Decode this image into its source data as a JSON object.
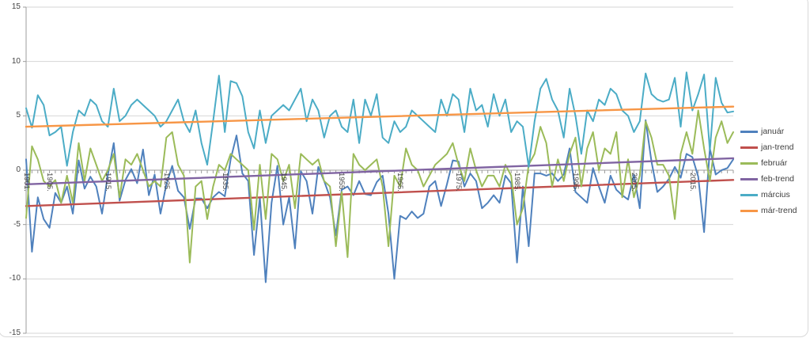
{
  "chart_data": {
    "type": "line",
    "title": "",
    "xlabel": "",
    "ylabel": "",
    "x_start_year": 1901,
    "x_end_year": 2022,
    "x_tick_labels": [
      "1901.",
      "1905.",
      "1915.",
      "1925.",
      "1935.",
      "1945.",
      "1955.",
      "1965.",
      "1975.",
      "1985.",
      "1995.",
      "2005.",
      "2015."
    ],
    "y_ticks": [
      15,
      10,
      5,
      0,
      -5,
      -10,
      -15
    ],
    "ylim": [
      -15,
      15
    ],
    "grid": true,
    "legend_position": "right",
    "colors": {
      "gridline": "#d6d6d6",
      "axis": "#9c9c9c",
      "label_text": "#444444",
      "frame_border": "#d9d9d9"
    },
    "series": [
      {
        "name": "január",
        "color": "#4F81BD",
        "kind": "data",
        "values": [
          1.0,
          -7.5,
          -2.5,
          -4.5,
          -5.3,
          -2.1,
          -3.0,
          -1.5,
          -4.0,
          0.9,
          -1.7,
          -0.6,
          -1.5,
          -4.0,
          -0.4,
          2.5,
          -2.8,
          -0.9,
          0.1,
          -1.2,
          1.9,
          -2.3,
          -0.4,
          -4.0,
          -1.3,
          0.4,
          -1.9,
          -2.5,
          -5.4,
          -2.6,
          -2.6,
          -3.5,
          -2.5,
          -2.0,
          -2.4,
          1.0,
          3.2,
          -0.3,
          -1.0,
          -7.8,
          -2.5,
          -10.3,
          -3.0,
          0.4,
          -5.0,
          -2.5,
          -7.2,
          -0.1,
          -1.0,
          -4.0,
          0.3,
          -1.0,
          -2.5,
          -6.0,
          -1.8,
          -1.5,
          -2.3,
          -1.0,
          -2.2,
          -2.3,
          -1.1,
          -0.5,
          -4.0,
          -10.0,
          -4.2,
          -4.5,
          -3.8,
          -4.4,
          -4.0,
          -1.5,
          -1.0,
          -3.3,
          -1.3,
          0.9,
          0.8,
          -1.5,
          -0.3,
          -1.0,
          -3.5,
          -3.0,
          -2.3,
          -3.0,
          -0.5,
          -1.2,
          -8.5,
          -1.5,
          -7.0,
          -0.3,
          -0.3,
          -0.5,
          -0.3,
          -1.0,
          -0.4,
          2.0,
          -2.0,
          -2.5,
          -3.0,
          0.2,
          -1.5,
          -3.0,
          -0.5,
          -1.8,
          -2.3,
          -2.7,
          -0.4,
          -3.5,
          4.6,
          0.8,
          -2.0,
          -1.5,
          -0.8,
          0.3,
          -0.7,
          1.5,
          1.2,
          -0.6,
          -5.7,
          2.0,
          -0.4,
          0.0,
          0.2,
          1.0
        ]
      },
      {
        "name": "jan-trend",
        "color": "#C0504D",
        "kind": "trend",
        "trend_start": -3.3,
        "trend_end": -0.9
      },
      {
        "name": "február",
        "color": "#9BBB59",
        "kind": "data",
        "values": [
          -4.4,
          2.2,
          1.0,
          -1.0,
          -1.5,
          -0.9,
          -3.0,
          -0.5,
          -3.0,
          2.5,
          -1.0,
          2.0,
          0.5,
          -1.0,
          0.0,
          1.5,
          -2.5,
          1.0,
          0.5,
          1.5,
          0.0,
          -1.5,
          -1.0,
          -1.5,
          3.0,
          3.5,
          0.5,
          -0.5,
          -8.5,
          -1.5,
          -1.0,
          -4.5,
          -1.5,
          0.5,
          0.0,
          1.5,
          1.0,
          0.5,
          0.0,
          -5.5,
          0.5,
          -4.5,
          1.5,
          1.0,
          -1.0,
          0.5,
          -3.5,
          1.5,
          1.0,
          0.5,
          1.0,
          -1.0,
          -1.5,
          -7.0,
          -2.0,
          -8.0,
          1.5,
          0.5,
          0.0,
          0.5,
          1.0,
          -1.5,
          -7.0,
          -0.5,
          -1.5,
          2.0,
          0.5,
          0.0,
          -1.5,
          -0.5,
          0.5,
          1.0,
          1.5,
          2.5,
          0.5,
          -1.0,
          2.0,
          0.0,
          -1.5,
          -0.5,
          -0.5,
          -1.5,
          0.5,
          -0.5,
          -5.0,
          -3.5,
          0.5,
          1.5,
          4.0,
          2.5,
          -1.5,
          1.0,
          -1.0,
          1.5,
          3.0,
          -1.5,
          2.0,
          3.5,
          0.0,
          2.0,
          1.5,
          3.5,
          -2.5,
          1.0,
          -2.5,
          -0.5,
          4.5,
          3.0,
          0.5,
          0.5,
          -0.5,
          -4.5,
          1.5,
          3.5,
          1.5,
          5.5,
          2.0,
          -1.0,
          3.0,
          4.5,
          2.5,
          3.5
        ]
      },
      {
        "name": "feb-trend",
        "color": "#8064A2",
        "kind": "trend",
        "trend_start": -1.3,
        "trend_end": 1.1
      },
      {
        "name": "március",
        "color": "#4BACC6",
        "kind": "data",
        "values": [
          5.7,
          3.9,
          6.9,
          6.0,
          3.2,
          3.5,
          4.0,
          0.4,
          3.5,
          5.5,
          5.0,
          6.5,
          6.0,
          4.5,
          4.0,
          7.5,
          4.5,
          5.0,
          6.0,
          6.5,
          6.0,
          5.5,
          5.0,
          4.0,
          4.5,
          5.5,
          6.5,
          4.5,
          3.5,
          5.5,
          2.5,
          0.5,
          4.5,
          8.7,
          3.5,
          8.2,
          8.0,
          6.8,
          3.5,
          2.0,
          5.5,
          2.5,
          5.0,
          5.5,
          6.0,
          5.5,
          6.5,
          7.5,
          4.5,
          6.5,
          5.5,
          3.0,
          5.0,
          5.5,
          4.0,
          3.5,
          6.5,
          2.5,
          6.5,
          5.0,
          7.0,
          3.0,
          2.5,
          4.5,
          3.5,
          4.0,
          5.5,
          5.0,
          4.5,
          4.0,
          3.5,
          6.5,
          5.0,
          7.0,
          6.5,
          3.5,
          7.5,
          5.5,
          6.0,
          4.0,
          7.0,
          5.0,
          6.5,
          3.5,
          4.5,
          4.0,
          0.3,
          4.5,
          7.5,
          8.4,
          6.5,
          5.5,
          3.0,
          7.5,
          5.0,
          1.5,
          5.5,
          4.5,
          6.5,
          6.0,
          7.5,
          7.0,
          5.5,
          5.0,
          3.5,
          4.5,
          8.9,
          7.0,
          6.5,
          6.3,
          6.5,
          8.5,
          4.0,
          9.0,
          5.5,
          7.0,
          8.8,
          1.8,
          8.5,
          6.2,
          5.3,
          5.4
        ]
      },
      {
        "name": "már-trend",
        "color": "#F79646",
        "kind": "trend",
        "trend_start": 4.0,
        "trend_end": 5.85
      }
    ]
  }
}
